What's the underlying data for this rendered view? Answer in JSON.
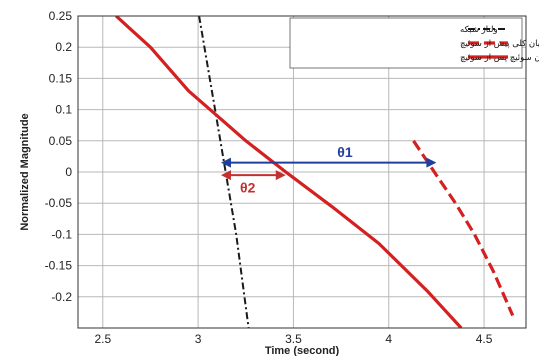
{
  "chart_data": {
    "type": "line",
    "xlabel": "Time (second)",
    "ylabel": "Normalized Magnitude",
    "xlim": [
      2.37,
      4.72
    ],
    "ylim": [
      -0.25,
      0.25
    ],
    "x_ticks": [
      2.5,
      3,
      3.5,
      4,
      4.5
    ],
    "x_tick_labels": [
      "2.5",
      "3",
      "3.5",
      "4",
      "4.5"
    ],
    "y_ticks": [
      0.25,
      0.2,
      0.15,
      0.1,
      0.05,
      0,
      -0.05,
      -0.1,
      -0.15,
      -0.2
    ],
    "y_tick_labels": [
      "0.25",
      "0.2",
      "0.15",
      "0.1",
      "0.05",
      "0",
      "-0.05",
      "-0.1",
      "-0.15",
      "-0.2"
    ],
    "grid": true,
    "legend_position": "top-right",
    "series": [
      {
        "name": "ولتاژ شبکه",
        "color": "#1a1a1a",
        "style": "dash-dot",
        "x": [
          3.005,
          3.1,
          3.15,
          3.2,
          3.265
        ],
        "y": [
          0.25,
          0.08,
          -0.01,
          -0.1,
          -0.25
        ]
      },
      {
        "name": "جریان کلی پیش از سوئیچ",
        "color": "#d42020",
        "style": "dashed",
        "x": [
          4.13,
          4.25,
          4.35,
          4.45,
          4.55,
          4.65
        ],
        "y": [
          0.05,
          -0.005,
          -0.05,
          -0.1,
          -0.16,
          -0.23
        ]
      },
      {
        "name": "جریان سوئیچ پس از سوئیچ",
        "color": "#d42020",
        "style": "solid",
        "x": [
          2.57,
          2.75,
          2.95,
          3.1,
          3.25,
          3.46,
          3.7,
          3.95,
          4.2,
          4.38
        ],
        "y": [
          0.25,
          0.2,
          0.13,
          0.09,
          0.05,
          0.0,
          -0.055,
          -0.115,
          -0.19,
          -0.25
        ]
      }
    ],
    "annotations": [
      {
        "label": "θ1",
        "color": "#1f3f9f",
        "x_start": 3.12,
        "x_end": 4.25,
        "y": 0.015,
        "label_x": 3.73,
        "label_y": 0.024
      },
      {
        "label": "θ2",
        "color": "#c43030",
        "x_start": 3.12,
        "x_end": 3.46,
        "y": -0.005,
        "label_x": 3.22,
        "label_y": -0.033
      }
    ]
  }
}
